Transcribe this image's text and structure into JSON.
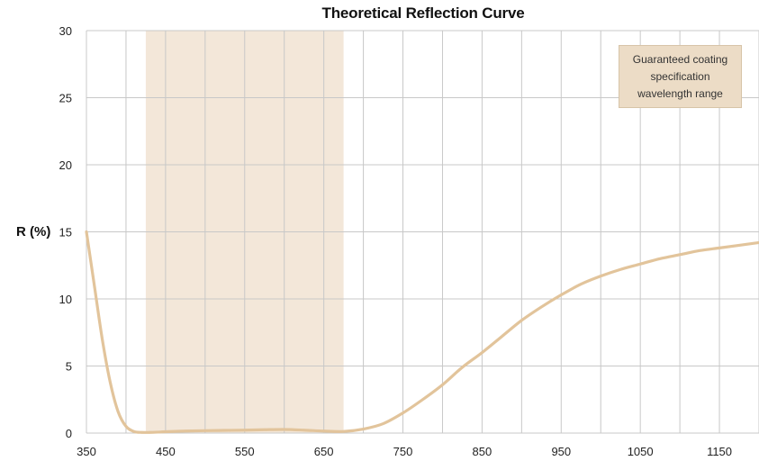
{
  "chart_data": {
    "type": "line",
    "title": "Theoretical Reflection Curve",
    "xlabel": "",
    "ylabel": "R (%)",
    "xlim": [
      350,
      1200
    ],
    "ylim": [
      0,
      30
    ],
    "x_ticks": [
      350,
      450,
      550,
      650,
      750,
      850,
      950,
      1050,
      1150
    ],
    "y_ticks": [
      0,
      5,
      10,
      15,
      20,
      25,
      30
    ],
    "grid": true,
    "highlight_range": [
      425,
      675
    ],
    "annotation": "Guaranteed coating specification wavelength range",
    "colors": {
      "curve": "#e2c49b",
      "band": "#f3e7d9",
      "annotation_bg": "#ecdcc6",
      "grid": "#c8c8c8"
    },
    "series": [
      {
        "x": [
          350,
          360,
          370,
          380,
          390,
          400,
          410,
          420,
          430,
          440,
          450,
          475,
          500,
          525,
          550,
          575,
          600,
          625,
          650,
          675,
          700,
          725,
          750,
          775,
          800,
          825,
          850,
          875,
          900,
          925,
          950,
          975,
          1000,
          1025,
          1050,
          1075,
          1100,
          1125,
          1150,
          1175,
          1200
        ],
        "y": [
          15.0,
          11.0,
          7.0,
          3.8,
          1.6,
          0.5,
          0.12,
          0.05,
          0.05,
          0.07,
          0.1,
          0.15,
          0.18,
          0.2,
          0.22,
          0.25,
          0.27,
          0.22,
          0.15,
          0.12,
          0.3,
          0.7,
          1.5,
          2.5,
          3.6,
          4.9,
          6.0,
          7.2,
          8.4,
          9.4,
          10.3,
          11.1,
          11.7,
          12.2,
          12.6,
          13.0,
          13.3,
          13.6,
          13.8,
          14.0,
          14.2
        ]
      }
    ]
  }
}
